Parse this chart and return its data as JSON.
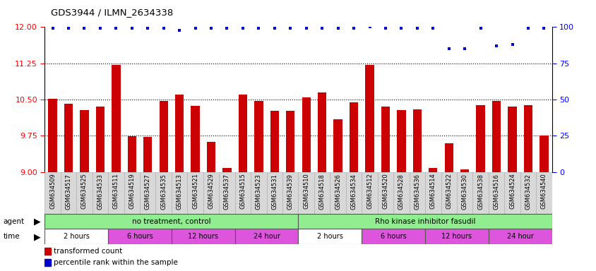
{
  "title": "GDS3944 / ILMN_2634338",
  "categories": [
    "GSM634509",
    "GSM634517",
    "GSM634525",
    "GSM634533",
    "GSM634511",
    "GSM634519",
    "GSM634527",
    "GSM634535",
    "GSM634513",
    "GSM634521",
    "GSM634529",
    "GSM634537",
    "GSM634515",
    "GSM634523",
    "GSM634531",
    "GSM634539",
    "GSM634510",
    "GSM634518",
    "GSM634526",
    "GSM634534",
    "GSM634512",
    "GSM634520",
    "GSM634528",
    "GSM634536",
    "GSM634514",
    "GSM634522",
    "GSM634530",
    "GSM634538",
    "GSM634516",
    "GSM634524",
    "GSM634532",
    "GSM634540"
  ],
  "bar_values": [
    10.52,
    10.42,
    10.28,
    10.35,
    11.22,
    9.74,
    9.73,
    10.47,
    10.6,
    10.37,
    9.63,
    9.08,
    10.6,
    10.47,
    10.27,
    10.27,
    10.54,
    10.65,
    10.1,
    10.44,
    11.22,
    10.35,
    10.28,
    10.3,
    9.08,
    9.6,
    9.05,
    10.39,
    10.47,
    10.35,
    10.38,
    9.75
  ],
  "percentile_values": [
    99,
    99,
    99,
    99,
    99,
    99,
    99,
    99,
    98,
    99,
    99,
    99,
    99,
    99,
    99,
    99,
    99,
    99,
    99,
    99,
    100,
    99,
    99,
    99,
    99,
    85,
    85,
    99,
    87,
    88,
    99,
    99
  ],
  "bar_color": "#cc0000",
  "dot_color": "#0000cc",
  "ylim_left": [
    9.0,
    12.0
  ],
  "ylim_right": [
    0,
    100
  ],
  "yticks_left": [
    9.0,
    9.75,
    10.5,
    11.25,
    12.0
  ],
  "yticks_right": [
    0,
    25,
    50,
    75,
    100
  ],
  "dotted_lines": [
    9.75,
    10.5,
    11.25
  ],
  "time_segs": [
    {
      "label": "2 hours",
      "color": "#ffffff",
      "start": 0,
      "end": 4
    },
    {
      "label": "6 hours",
      "color": "#dd55dd",
      "start": 4,
      "end": 8
    },
    {
      "label": "12 hours",
      "color": "#dd55dd",
      "start": 8,
      "end": 12
    },
    {
      "label": "24 hour",
      "color": "#dd55dd",
      "start": 12,
      "end": 16
    },
    {
      "label": "2 hours",
      "color": "#ffffff",
      "start": 16,
      "end": 20
    },
    {
      "label": "6 hours",
      "color": "#dd55dd",
      "start": 20,
      "end": 24
    },
    {
      "label": "12 hours",
      "color": "#dd55dd",
      "start": 24,
      "end": 28
    },
    {
      "label": "24 hour",
      "color": "#dd55dd",
      "start": 28,
      "end": 32
    }
  ],
  "bg_color": "#ffffff",
  "tick_label_fontsize": 6.0,
  "title_fontsize": 9.5,
  "bar_width": 0.55
}
